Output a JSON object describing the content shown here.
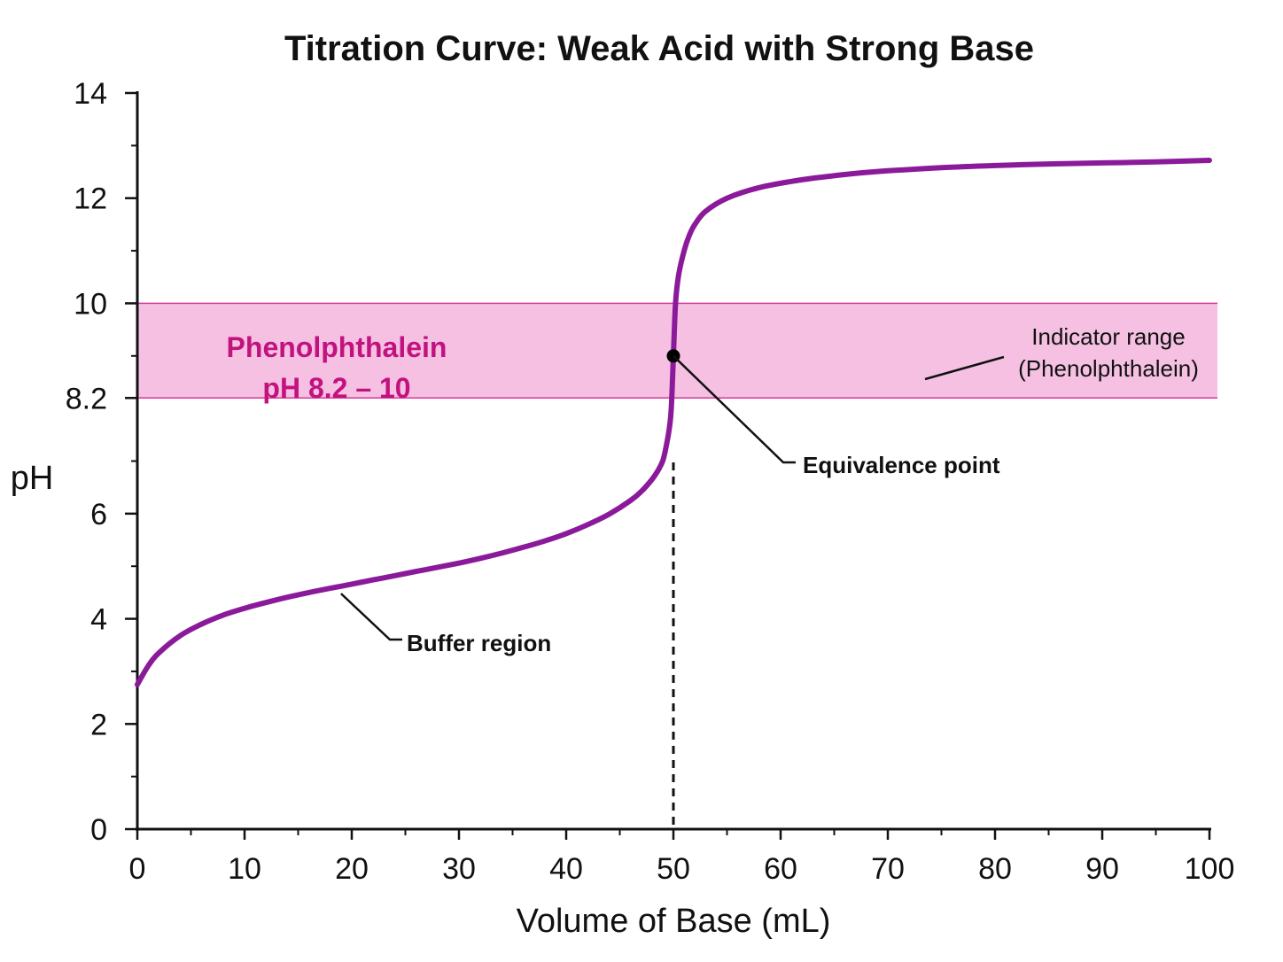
{
  "chart_data": {
    "type": "line",
    "title": "Titration Curve: Weak Acid with Strong Base",
    "xlabel": "Volume of Base (mL)",
    "ylabel": "pH",
    "xlim": [
      0,
      100
    ],
    "ylim": [
      0,
      14
    ],
    "x_ticks": [
      0,
      10,
      20,
      30,
      40,
      50,
      60,
      70,
      80,
      90,
      100
    ],
    "y_ticks": [
      0,
      2,
      4,
      6,
      8.2,
      10,
      12,
      14
    ],
    "y_tick_labels": [
      "0",
      "2",
      "4",
      "6",
      "8.2",
      "10",
      "12",
      "14"
    ],
    "highlighted_y_ticks": [
      8.2,
      10
    ],
    "grid": false,
    "series": [
      {
        "color": "#8B1A9B",
        "x": [
          0,
          1,
          2,
          4,
          6,
          8,
          10,
          12,
          14,
          16,
          18,
          20,
          22,
          24,
          26,
          28,
          30,
          32,
          34,
          36,
          38,
          40,
          42,
          44,
          46,
          47,
          48,
          48.5,
          49,
          49.3,
          49.6,
          49.8,
          50,
          50.2,
          50.5,
          51,
          51.5,
          52,
          53,
          55,
          58,
          62,
          66,
          70,
          75,
          80,
          85,
          90,
          95,
          100
        ],
        "y": [
          2.75,
          3.1,
          3.35,
          3.68,
          3.9,
          4.07,
          4.2,
          4.31,
          4.41,
          4.5,
          4.58,
          4.66,
          4.74,
          4.82,
          4.9,
          4.98,
          5.06,
          5.15,
          5.25,
          5.36,
          5.48,
          5.62,
          5.79,
          5.99,
          6.25,
          6.42,
          6.65,
          6.8,
          7.0,
          7.25,
          7.6,
          8.0,
          9.0,
          10.0,
          10.55,
          11.0,
          11.3,
          11.5,
          11.75,
          12.0,
          12.2,
          12.35,
          12.45,
          12.52,
          12.58,
          12.62,
          12.65,
          12.67,
          12.69,
          12.72
        ]
      }
    ],
    "indicator_band": {
      "y_min": 8.2,
      "y_max": 10,
      "fill": "#F5C0E1",
      "edge": "#D6379E",
      "text_color": "#C2127F",
      "label_line1": "Phenolphthalein",
      "label_line2": "pH 8.2 – 10"
    },
    "equivalence_point": {
      "x": 50,
      "y": 9.0
    },
    "annotations": {
      "indicator_range_line1": "Indicator range",
      "indicator_range_line2": "(Phenolphthalein)",
      "equivalence": "Equivalence point",
      "buffer": "Buffer region"
    }
  }
}
